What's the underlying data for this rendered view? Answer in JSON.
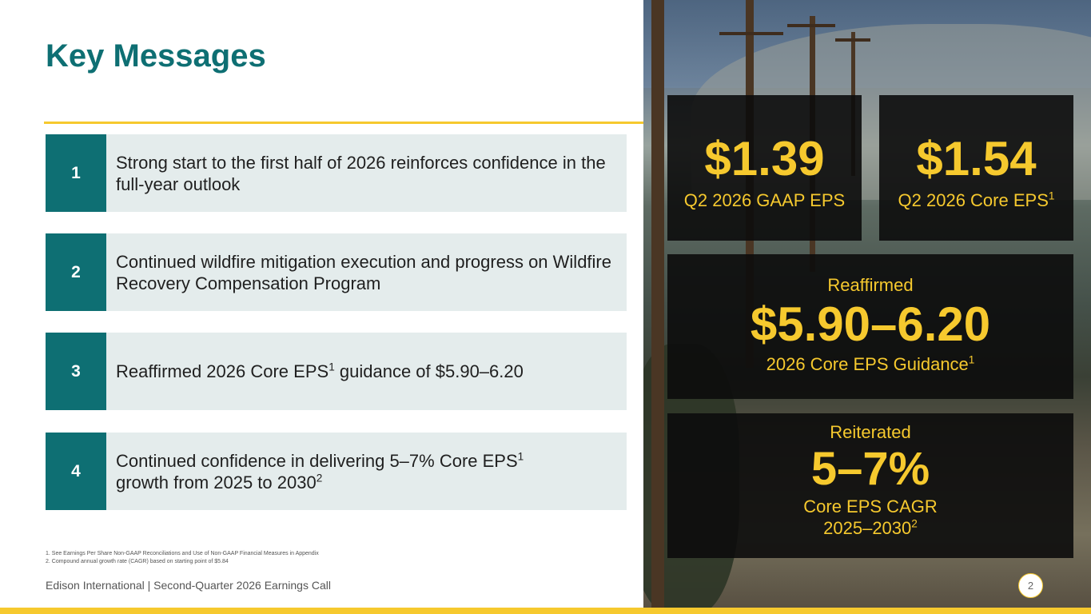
{
  "slide": {
    "title": "Key Messages",
    "page_number": "2",
    "footer": "Edison International |  Second-Quarter 2026 Earnings Call",
    "footnotes": [
      "1.  See Earnings Per Share Non-GAAP Reconciliations and Use of Non-GAAP Financial Measures in Appendix",
      "2.  Compound annual growth rate (CAGR) based on starting point of $5.84"
    ]
  },
  "messages": [
    {
      "num": "1",
      "text": "Strong start to the first half of 2026 reinforces confidence in the full-year outlook"
    },
    {
      "num": "2",
      "text": "Continued wildfire mitigation execution and progress on Wildfire Recovery Compensation Program"
    },
    {
      "num": "3",
      "text_a": "Reaffirmed 2026 Core EPS",
      "sup": "1",
      "text_b": " guidance of $5.90–6.20"
    },
    {
      "num": "4",
      "text_a": "Continued confidence in delivering 5–7% Core EPS",
      "sup_a": "1",
      "text_b": "growth from 2025 to 2030",
      "sup_b": "2"
    }
  ],
  "cards": {
    "gaap": {
      "value": "$1.39",
      "label": "Q2 2026 GAAP EPS"
    },
    "core": {
      "value": "$1.54",
      "label": "Q2 2026 Core EPS",
      "sup": "1"
    },
    "guidance": {
      "header": "Reaffirmed",
      "value": "$5.90–6.20",
      "label": "2026 Core EPS Guidance",
      "sup": "1"
    },
    "growth": {
      "header": "Reiterated",
      "value": "5–7%",
      "label1": "Core EPS CAGR",
      "label2": "2025–2030",
      "sup": "2"
    }
  },
  "colors": {
    "teal": "#0e6f73",
    "gold": "#f6c92e",
    "panel": "#e4ecec"
  }
}
